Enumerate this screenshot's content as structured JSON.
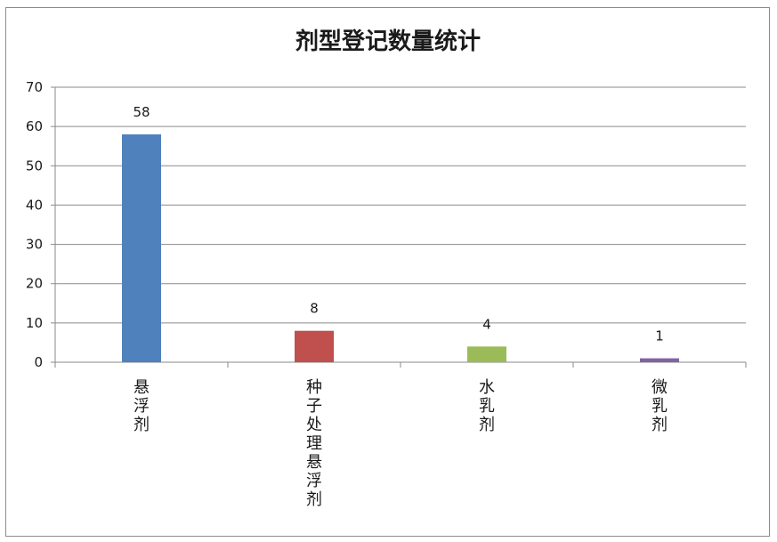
{
  "chart_data": {
    "type": "bar",
    "title": "剂型登记数量统计",
    "xlabel": "",
    "ylabel": "",
    "categories": [
      "悬浮剂",
      "种子处理悬浮剂",
      "水乳剂",
      "微乳剂"
    ],
    "values": [
      58,
      8,
      4,
      1
    ],
    "colors": [
      "#4f81bd",
      "#c0504d",
      "#9bbb59",
      "#8064a2"
    ],
    "ylim": [
      0,
      70
    ],
    "yticks": [
      0,
      10,
      20,
      30,
      40,
      50,
      60,
      70
    ],
    "grid": true,
    "legend": false,
    "data_labels": true
  }
}
